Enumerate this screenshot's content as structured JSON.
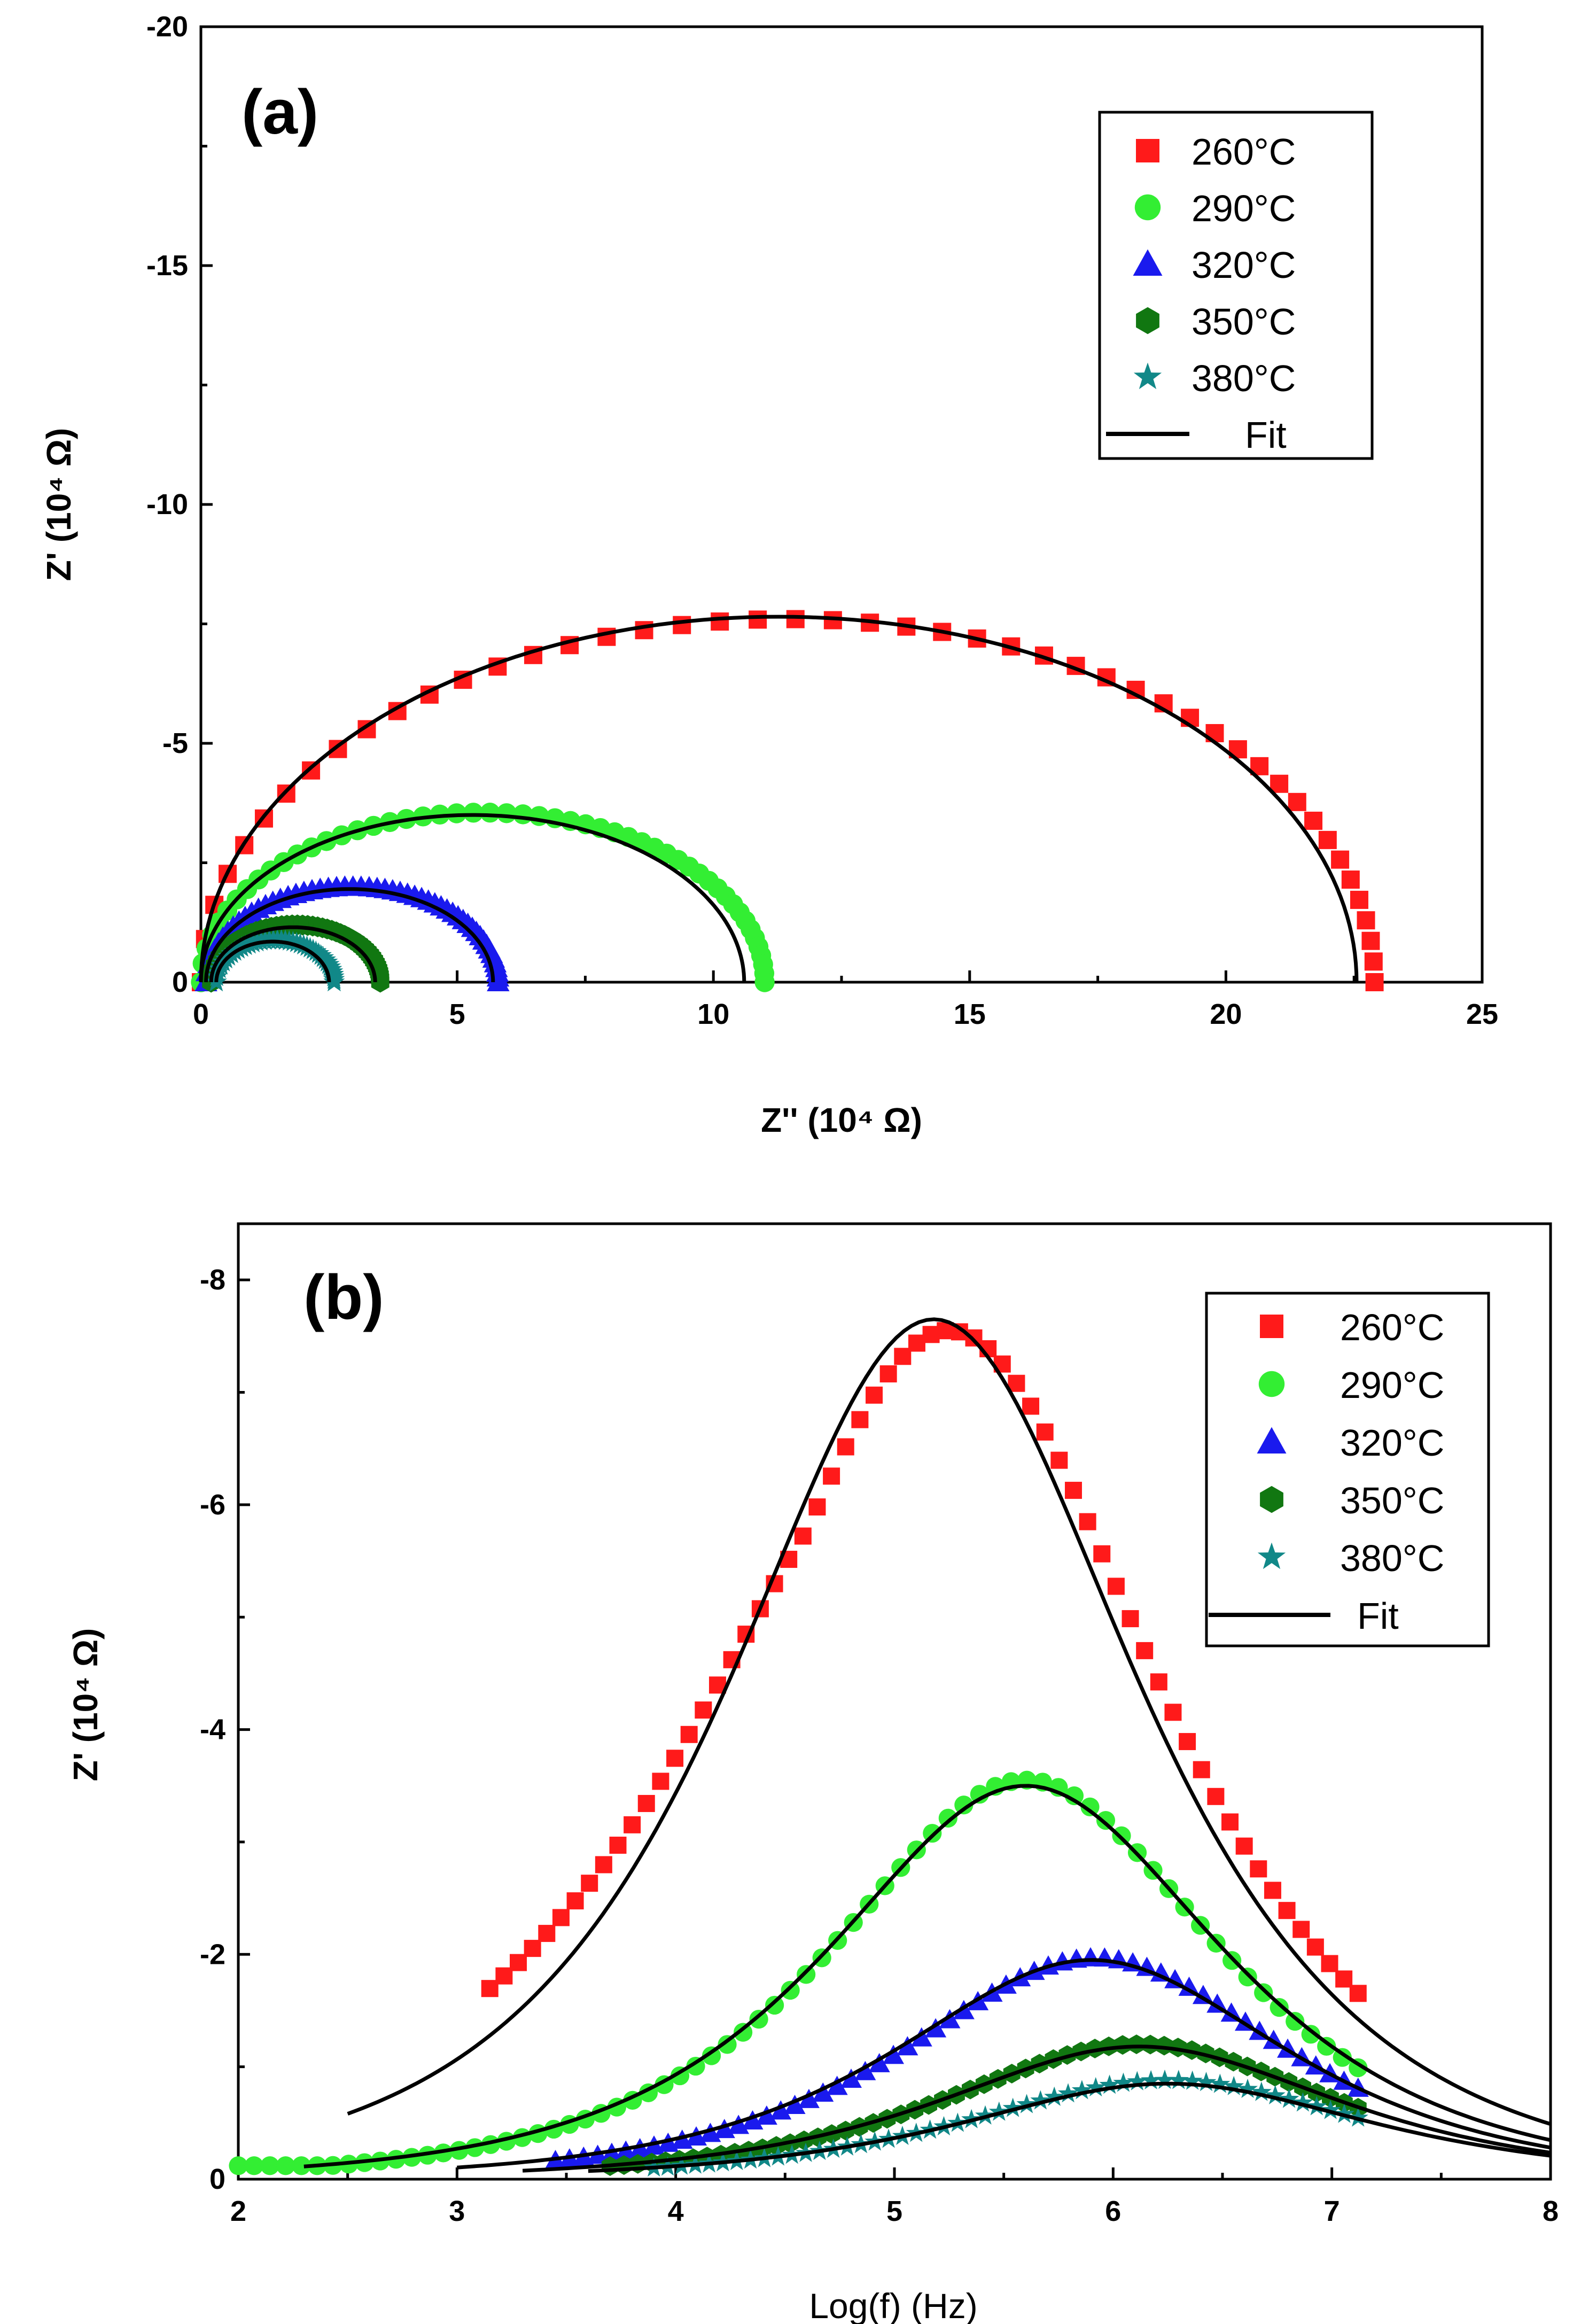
{
  "chart_data": [
    {
      "type": "scatter",
      "panel_label": "(a)",
      "xlabel": "Z'' (10⁴ Ω)",
      "ylabel": "Z' (10⁴ Ω)",
      "xlim": [
        0,
        25
      ],
      "ylim": [
        0,
        -20
      ],
      "xticks": [
        0,
        5,
        10,
        15,
        20,
        25
      ],
      "yticks": [
        0,
        -5,
        -10,
        -15,
        -20
      ],
      "legend_position": "top-right",
      "series": [
        {
          "name": "260°C",
          "marker": "square",
          "color": "#ff1a1a",
          "R0": 0.0,
          "R": 22.9,
          "peak": -7.6,
          "npts": 48
        },
        {
          "name": "290°C",
          "marker": "circle",
          "color": "#33ee33",
          "R0": 0.0,
          "R": 11.0,
          "peak": -3.55,
          "npts": 52
        },
        {
          "name": "320°C",
          "marker": "triangle",
          "color": "#1a1aee",
          "R0": 0.1,
          "R": 5.8,
          "peak": -2.0,
          "npts": 55
        },
        {
          "name": "350°C",
          "marker": "hexagon",
          "color": "#117711",
          "R0": 0.2,
          "R": 3.5,
          "peak": -1.2,
          "npts": 50
        },
        {
          "name": "380°C",
          "marker": "star",
          "color": "#118888",
          "R0": 0.3,
          "R": 2.6,
          "peak": -0.88,
          "npts": 45
        }
      ],
      "fit": {
        "name": "Fit",
        "color": "#000000",
        "curves": [
          {
            "R0": 0.0,
            "R": 22.55,
            "peak": -7.65
          },
          {
            "R0": 0.0,
            "R": 10.6,
            "peak": -3.5
          },
          {
            "R0": 0.1,
            "R": 5.7,
            "peak": -1.95
          },
          {
            "R0": 0.2,
            "R": 3.4,
            "peak": -1.15
          },
          {
            "R0": 0.3,
            "R": 2.5,
            "peak": -0.85
          }
        ]
      }
    },
    {
      "type": "scatter",
      "panel_label": "(b)",
      "xlabel": "Log(f) (Hz)",
      "ylabel": "Z' (10⁴ Ω)",
      "xlim": [
        2,
        8
      ],
      "ylim": [
        0,
        -8.5
      ],
      "xticks": [
        2,
        3,
        4,
        5,
        6,
        7,
        8
      ],
      "yticks": [
        0,
        -2,
        -4,
        -6,
        -8
      ],
      "legend_position": "top-right",
      "series": [
        {
          "name": "260°C",
          "marker": "square",
          "color": "#ff1a1a",
          "peak": -7.55,
          "center": 5.25,
          "width": 0.85,
          "xstart": 3.15,
          "xend": 7.12,
          "npts": 62
        },
        {
          "name": "290°C",
          "marker": "circle",
          "color": "#33ee33",
          "peak": -3.55,
          "center": 5.6,
          "width": 0.78,
          "xstart": 2.0,
          "xend": 7.12,
          "npts": 72
        },
        {
          "name": "320°C",
          "marker": "triangle",
          "color": "#1a1aee",
          "peak": -1.97,
          "center": 5.92,
          "width": 0.78,
          "xstart": 3.45,
          "xend": 7.12,
          "npts": 58
        },
        {
          "name": "350°C",
          "marker": "hexagon",
          "color": "#117711",
          "peak": -1.2,
          "center": 6.12,
          "width": 0.8,
          "xstart": 3.7,
          "xend": 7.12,
          "npts": 55
        },
        {
          "name": "380°C",
          "marker": "star",
          "color": "#118888",
          "peak": -0.88,
          "center": 6.25,
          "width": 0.82,
          "xstart": 3.9,
          "xend": 7.12,
          "npts": 52
        }
      ],
      "fit": {
        "name": "Fit",
        "color": "#000000",
        "curves": [
          {
            "peak": -7.65,
            "center": 5.18,
            "width": 0.82,
            "xstart": 2.5,
            "xend": 8.0
          },
          {
            "peak": -3.5,
            "center": 5.6,
            "width": 0.8,
            "xstart": 2.3,
            "xend": 8.0
          },
          {
            "peak": -1.95,
            "center": 5.9,
            "width": 0.8,
            "xstart": 3.0,
            "xend": 8.0
          },
          {
            "peak": -1.18,
            "center": 6.12,
            "width": 0.82,
            "xstart": 3.3,
            "xend": 8.0
          },
          {
            "peak": -0.85,
            "center": 6.25,
            "width": 0.84,
            "xstart": 3.6,
            "xend": 8.0
          }
        ]
      }
    }
  ]
}
